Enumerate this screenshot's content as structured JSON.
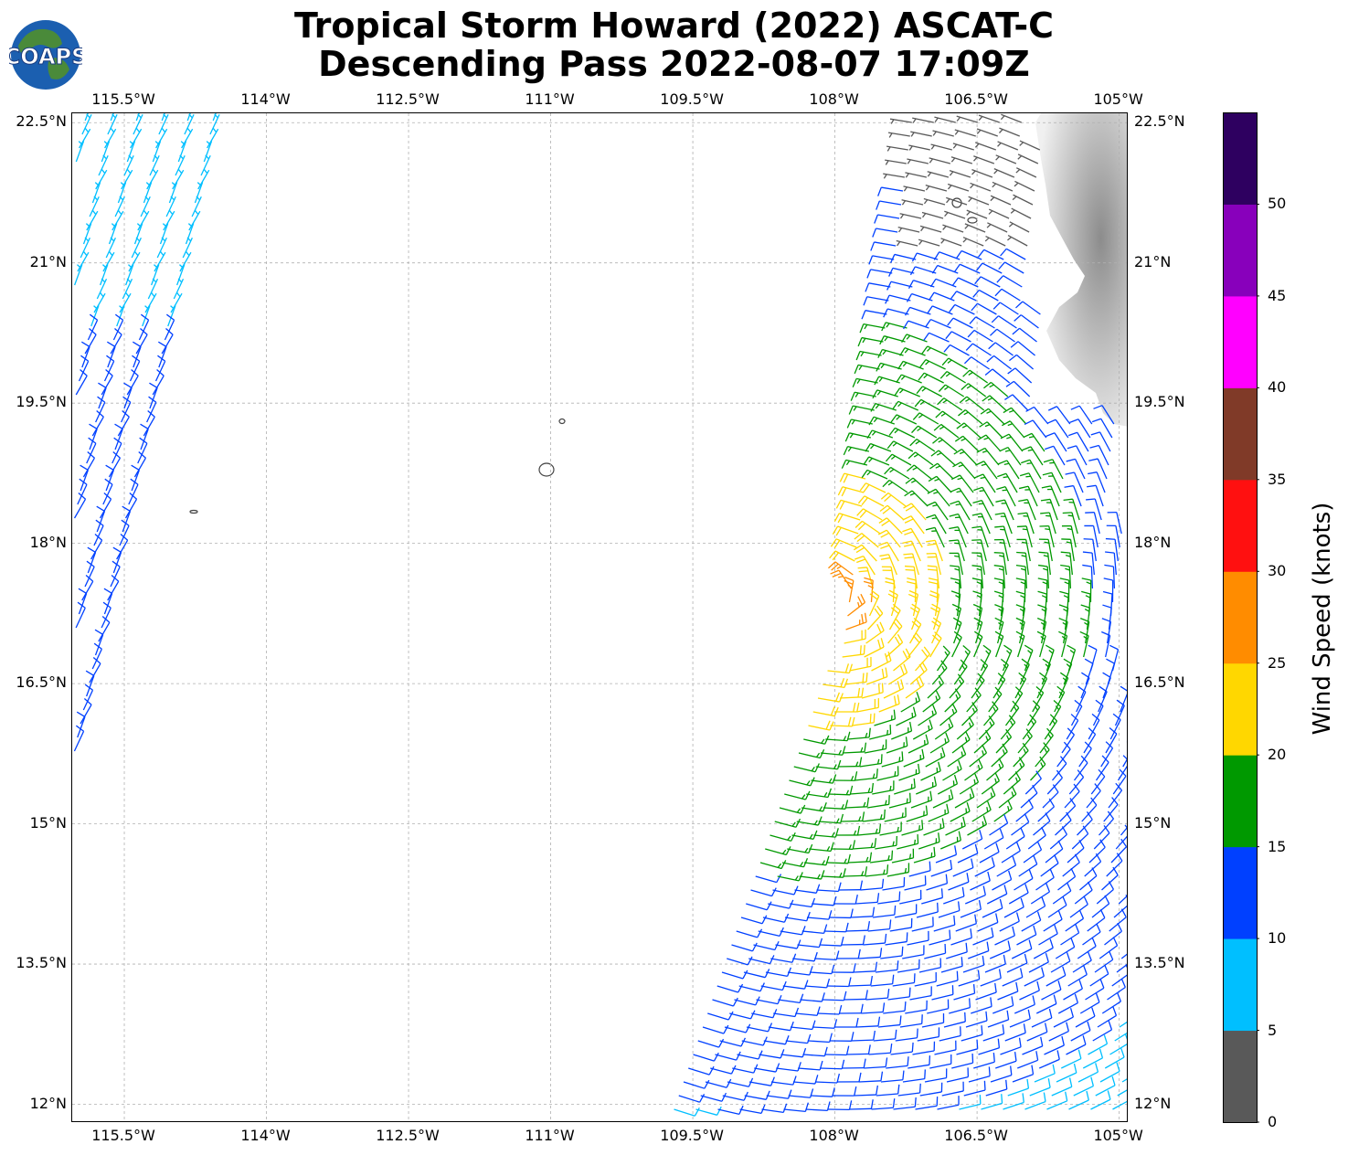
{
  "header": {
    "title_line1": "Tropical Storm Howard (2022) ASCAT-C",
    "title_line2": "Descending Pass 2022-08-07 17:09Z",
    "logo_text": "COAPS"
  },
  "map": {
    "lon_labels": [
      "115.5°W",
      "114°W",
      "112.5°W",
      "111°W",
      "109.5°W",
      "108°W",
      "106.5°W",
      "105°W"
    ],
    "lon_values": [
      -115.5,
      -114,
      -112.5,
      -111,
      -109.5,
      -108,
      -106.5,
      -105
    ],
    "lat_labels": [
      "22.5°N",
      "21°N",
      "19.5°N",
      "18°N",
      "16.5°N",
      "15°N",
      "13.5°N",
      "12°N"
    ],
    "lat_values": [
      22.5,
      21,
      19.5,
      18,
      16.5,
      15,
      13.5,
      12
    ],
    "extent": {
      "lon_min": -116.05,
      "lon_max": -104.9,
      "lat_min": 11.8,
      "lat_max": 22.6
    },
    "coastline_color": "#555555",
    "land_shading": "grey terrain relief"
  },
  "colorbar": {
    "title": "Wind Speed (knots)",
    "tick_labels": [
      "0",
      "5",
      "10",
      "15",
      "20",
      "25",
      "30",
      "35",
      "40",
      "45",
      "50"
    ],
    "bins": [
      {
        "min": 0,
        "max": 5,
        "color": "#595959"
      },
      {
        "min": 5,
        "max": 10,
        "color": "#00bfff"
      },
      {
        "min": 10,
        "max": 15,
        "color": "#0040ff"
      },
      {
        "min": 15,
        "max": 20,
        "color": "#009900"
      },
      {
        "min": 20,
        "max": 25,
        "color": "#ffd700"
      },
      {
        "min": 25,
        "max": 30,
        "color": "#ff8c00"
      },
      {
        "min": 30,
        "max": 35,
        "color": "#ff1010"
      },
      {
        "min": 35,
        "max": 40,
        "color": "#803a28"
      },
      {
        "min": 40,
        "max": 45,
        "color": "#ff00ff"
      },
      {
        "min": 45,
        "max": 50,
        "color": "#8800bb"
      },
      {
        "min": 50,
        "max": 55,
        "color": "#2e0060"
      }
    ]
  },
  "chart_data": {
    "type": "wind-barb map",
    "swaths": [
      {
        "lat_range": [
          15.6,
          22.6
        ],
        "lon_range": [
          -116.0,
          -114.6
        ],
        "speed_knots": [
          5,
          15
        ]
      },
      {
        "lat_range": [
          11.8,
          22.6
        ],
        "lon_range": [
          -109.8,
          -104.9
        ],
        "speed_knots": [
          0,
          30
        ]
      }
    ],
    "storm_center_approx": {
      "lat": 17.4,
      "lon": -108.0
    },
    "max_speed_band_knots": [
      25,
      30
    ]
  }
}
